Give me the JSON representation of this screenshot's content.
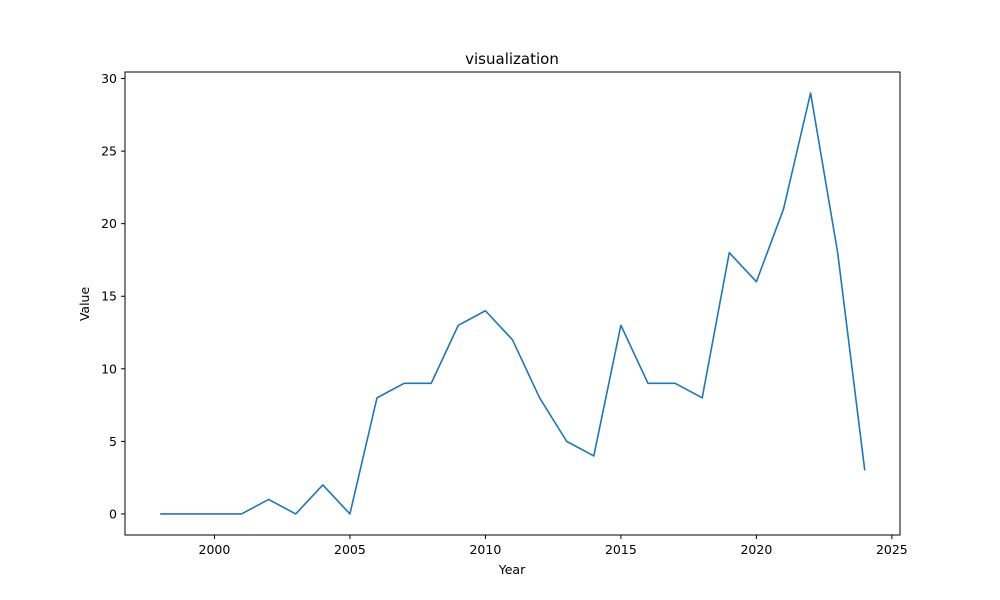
{
  "chart_data": {
    "type": "line",
    "title": "visualization",
    "xlabel": "Year",
    "ylabel": "Value",
    "xlim": [
      1996.7,
      2025.3
    ],
    "ylim": [
      -1.45,
      30.45
    ],
    "xticks": [
      2000,
      2005,
      2010,
      2015,
      2020,
      2025
    ],
    "yticks": [
      0,
      5,
      10,
      15,
      20,
      25,
      30
    ],
    "grid": false,
    "series": [
      {
        "color": "#1f77b4",
        "x": [
          1998,
          1999,
          2000,
          2001,
          2002,
          2003,
          2004,
          2005,
          2006,
          2007,
          2008,
          2009,
          2010,
          2011,
          2012,
          2013,
          2014,
          2015,
          2016,
          2017,
          2018,
          2019,
          2020,
          2021,
          2022,
          2023,
          2024
        ],
        "y": [
          0,
          0,
          0,
          0,
          1,
          0,
          2,
          0,
          8,
          9,
          9,
          13,
          14,
          12,
          8,
          5,
          4,
          13,
          9,
          9,
          8,
          18,
          16,
          21,
          29,
          18,
          3
        ]
      }
    ]
  }
}
